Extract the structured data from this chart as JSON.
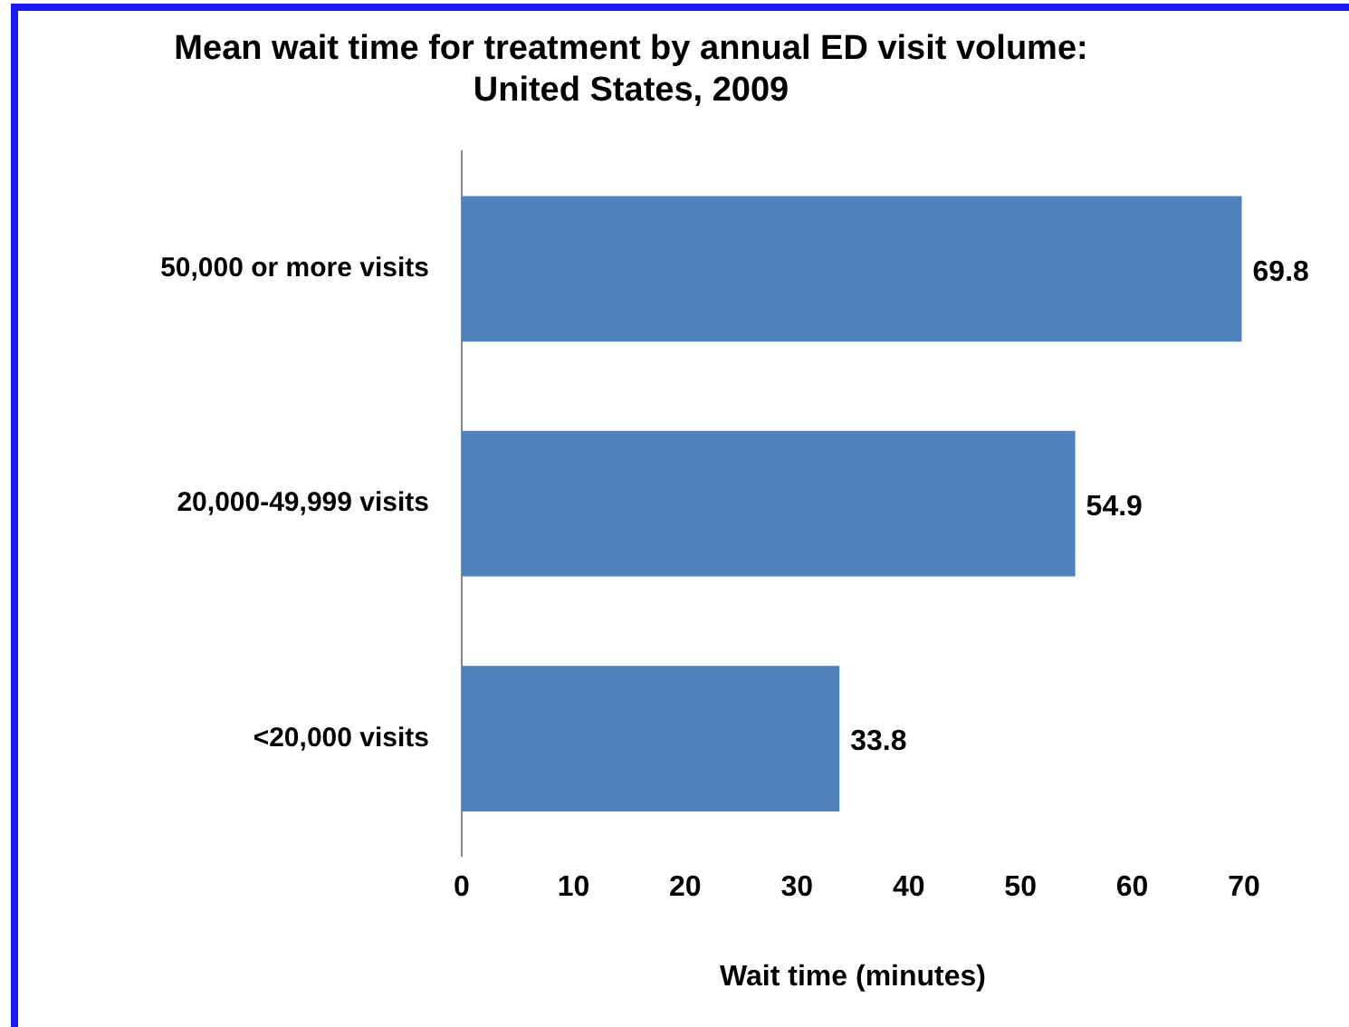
{
  "chart_data": {
    "type": "bar",
    "orientation": "horizontal",
    "title": "Mean wait time for treatment by annual ED visit volume: United States, 2009",
    "xlabel": "Wait time (minutes)",
    "categories": [
      "50,000 or more visits",
      "20,000-49,999 visits",
      "<20,000 visits"
    ],
    "values": [
      69.8,
      54.9,
      33.8
    ],
    "color": "#4f81bd",
    "xlim": [
      0,
      70
    ],
    "xticks": [
      0,
      10,
      20,
      30,
      40,
      50,
      60,
      70
    ],
    "grid": false,
    "data_labels": true
  }
}
